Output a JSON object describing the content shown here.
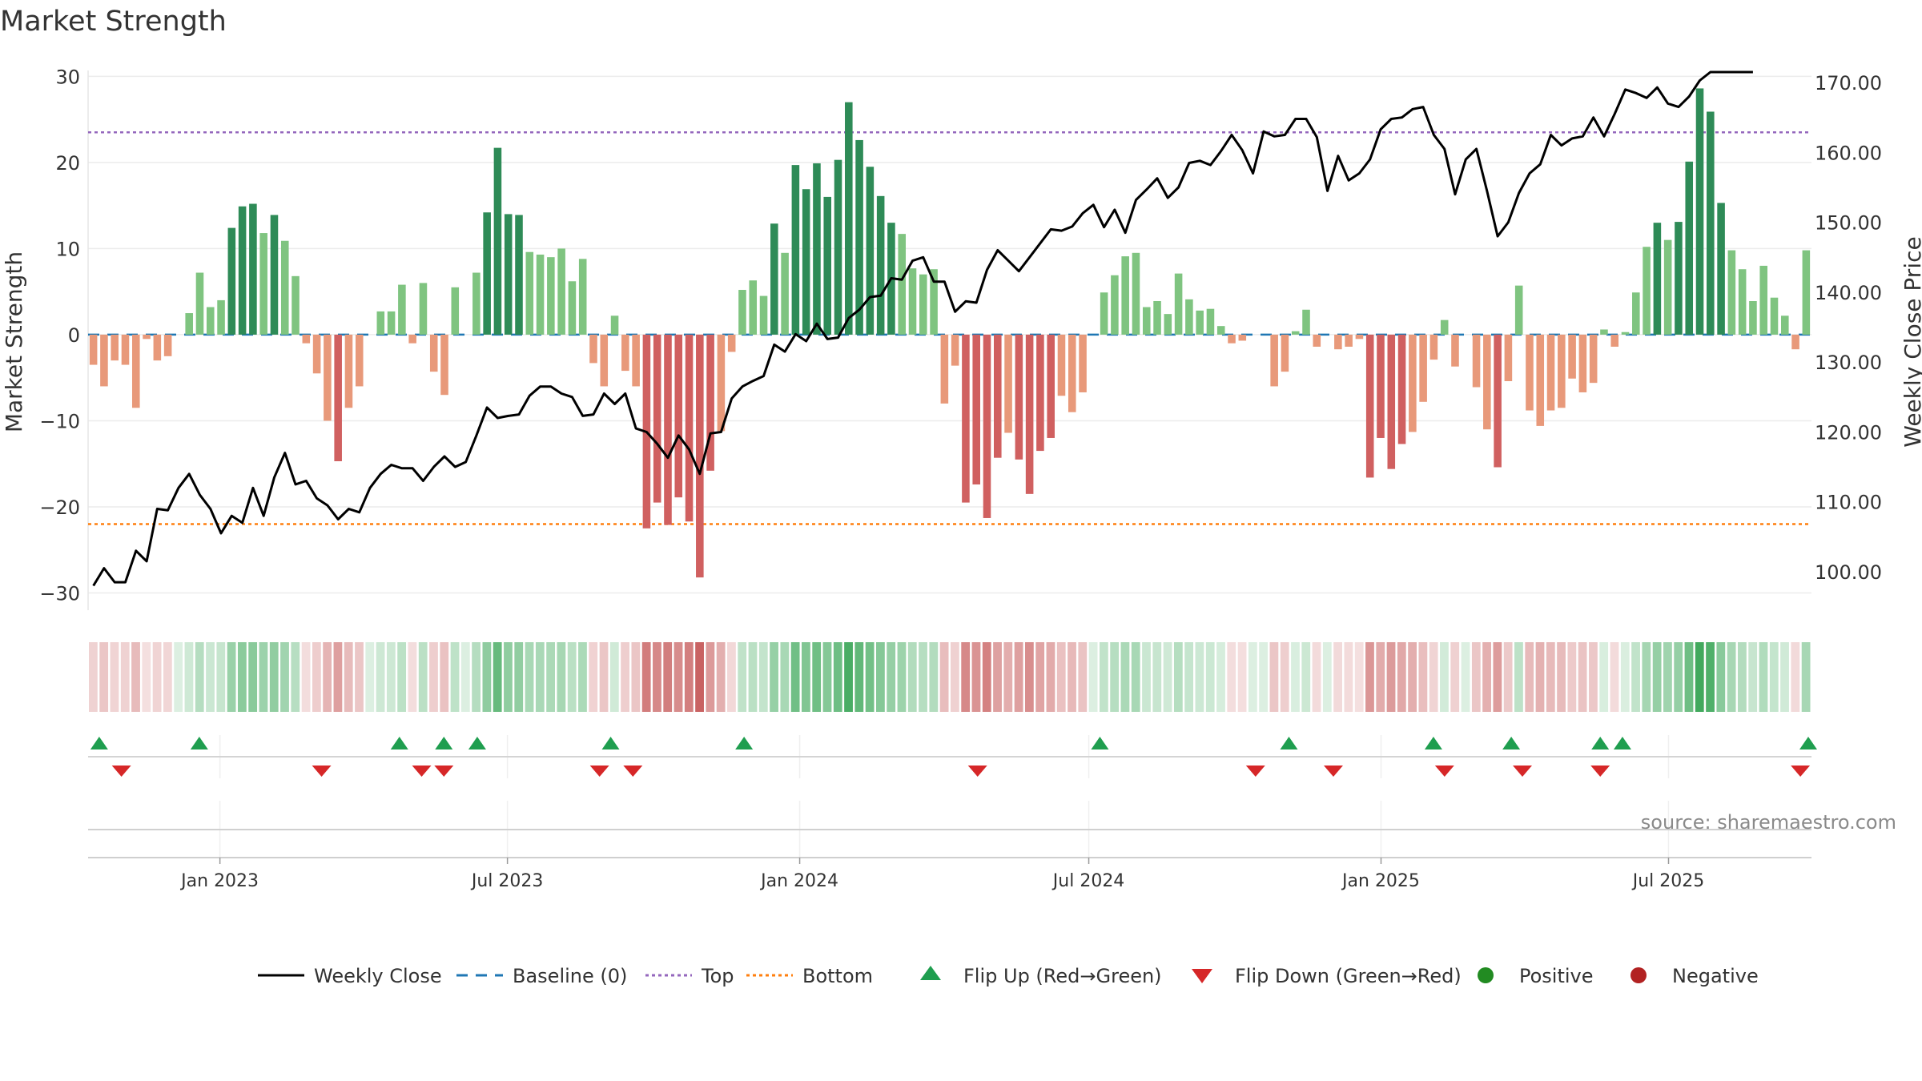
{
  "title": "Market Strength",
  "source_label": "source: sharemaestro.com",
  "chart_data": {
    "type": "bar",
    "title": "Market Strength",
    "ylabel_left": "Market Strength",
    "ylabel_right": "Weekly Close Price",
    "ylim_left": [
      -32,
      30.5
    ],
    "ylim_right": [
      94.5,
      171.5
    ],
    "yticks_left": [
      30,
      20,
      10,
      0,
      -10,
      -20,
      -30
    ],
    "ytick_labels_left": [
      "30",
      "20",
      "10",
      "0",
      "−10",
      "−20",
      "−30"
    ],
    "yticks_right": [
      170,
      160,
      150,
      140,
      130,
      120,
      110,
      100
    ],
    "ytick_labels_right": [
      "170.00",
      "160.00",
      "150.00",
      "140.00",
      "130.00",
      "120.00",
      "110.00",
      "100.00"
    ],
    "x_start": "2022-10-10",
    "x_end": "2025-09-29",
    "x_ticks": [
      {
        "date": "2023-01-01",
        "label": "Jan 2023"
      },
      {
        "date": "2023-07-01",
        "label": "Jul 2023"
      },
      {
        "date": "2024-01-01",
        "label": "Jan 2024"
      },
      {
        "date": "2024-07-01",
        "label": "Jul 2024"
      },
      {
        "date": "2025-01-01",
        "label": "Jan 2025"
      },
      {
        "date": "2025-07-01",
        "label": "Jul 2025"
      }
    ],
    "top_level": 23.5,
    "bottom_level": -22,
    "market_strength": [
      -3.5,
      -6,
      -3,
      -3.5,
      -8.5,
      -0.5,
      -3,
      -2.5,
      0,
      2.5,
      7.2,
      3.2,
      4,
      12.4,
      14.9,
      15.2,
      11.8,
      13.9,
      10.9,
      6.8,
      -1,
      -4.5,
      -10,
      -14.7,
      -8.5,
      -6,
      0,
      2.7,
      2.7,
      5.8,
      -1,
      6,
      -4.3,
      -7,
      5.5,
      0,
      7.2,
      14.2,
      21.7,
      14,
      13.9,
      9.6,
      9.3,
      9,
      10,
      6.2,
      8.8,
      -3.3,
      -6,
      2.2,
      -4.2,
      -6,
      -22.5,
      -19.5,
      -22.1,
      -18.9,
      -21.7,
      -28.2,
      -15.8,
      -11.2,
      -2,
      5.2,
      6.3,
      4.5,
      12.9,
      9.5,
      19.7,
      16.9,
      19.9,
      16,
      20.3,
      27,
      22.6,
      19.5,
      16.1,
      13,
      11.7,
      7.7,
      7,
      7.6,
      -8,
      -3.6,
      -19.5,
      -17.4,
      -21.3,
      -14.3,
      -11.4,
      -14.5,
      -18.5,
      -13.5,
      -12,
      -7.1,
      -9,
      -6.7,
      0,
      4.9,
      6.9,
      9.1,
      9.5,
      3.2,
      3.9,
      2.4,
      7.1,
      4.1,
      2.8,
      3,
      1,
      -1,
      -0.7,
      0,
      0,
      -6,
      -4.3,
      0.4,
      2.9,
      -1.4,
      0,
      -1.7,
      -1.4,
      -0.5,
      -16.6,
      -12,
      -15.6,
      -12.7,
      -11.3,
      -7.8,
      -2.9,
      1.7,
      -3.7,
      0,
      -6.1,
      -11,
      -15.4,
      -5.4,
      5.7,
      -8.8,
      -10.6,
      -8.8,
      -8.5,
      -5.1,
      -6.7,
      -5.6,
      0.6,
      -1.4,
      0.3,
      4.9,
      10.2,
      13,
      11,
      13.1,
      20.1,
      28.6,
      25.9,
      15.3,
      9.8,
      7.6,
      3.9,
      8,
      4.3,
      2.2,
      -1.7,
      9.8
    ],
    "weekly_close": [
      98,
      100.5,
      98.5,
      98.5,
      103,
      101.5,
      109,
      108.8,
      112,
      114,
      111,
      109,
      105.5,
      108,
      107,
      112,
      108,
      113.5,
      117,
      112.5,
      113,
      110.5,
      109.5,
      107.5,
      109,
      108.5,
      112,
      114,
      115.3,
      114.8,
      114.8,
      113,
      115,
      116.5,
      115,
      115.7,
      119.5,
      123.5,
      122,
      122.3,
      122.5,
      125.2,
      126.5,
      126.5,
      125.5,
      125,
      122.3,
      122.5,
      125.5,
      124,
      125.5,
      120.5,
      120,
      118.3,
      116.3,
      119.5,
      117.5,
      114,
      119.8,
      120,
      124.8,
      126.5,
      127.3,
      128,
      132.5,
      131.5,
      134,
      133,
      135.5,
      133.3,
      133.5,
      136.3,
      137.5,
      139.3,
      139.5,
      142,
      141.8,
      144.5,
      145,
      141.5,
      141.5,
      137.2,
      138.7,
      138.5,
      143.2,
      146,
      144.5,
      143,
      145,
      147,
      149,
      148.8,
      149.4,
      151.3,
      152.5,
      149.3,
      151.8,
      148.5,
      153.2,
      154.7,
      156.3,
      153.5,
      155,
      158.5,
      158.8,
      158.2,
      160.2,
      162.5,
      160.3,
      157,
      163,
      162.3,
      162.5,
      164.8,
      164.8,
      162.2,
      154.5,
      159.5,
      156,
      157,
      159,
      163.3,
      164.8,
      165,
      166.2,
      166.5,
      162.5,
      160.5,
      154,
      159,
      160.5,
      154.5,
      148,
      150,
      154.2,
      157,
      158.3,
      162.5,
      161,
      162,
      162.3,
      165,
      162.3,
      165.5,
      169,
      168.5,
      167.8,
      169.3,
      167,
      166.5,
      168,
      170.3,
      172.5,
      172.3,
      172.5,
      174,
      175.6
    ],
    "strength_colors": {
      "strong_positive": "#2e8b57",
      "weak_positive": "#7fc480",
      "strong_negative": "#d06060",
      "weak_negative": "#e8997a"
    },
    "flip_up_dates": [
      "2022-10-17",
      "2022-12-19",
      "2023-04-24",
      "2023-05-22",
      "2023-06-12",
      "2023-09-04",
      "2023-11-27",
      "2024-07-08",
      "2024-11-04",
      "2025-02-03",
      "2025-03-24",
      "2025-05-19",
      "2025-06-02",
      "2025-09-29"
    ],
    "flip_down_dates": [
      "2022-10-31",
      "2023-03-06",
      "2023-05-08",
      "2023-05-22",
      "2023-08-28",
      "2023-09-18",
      "2024-04-22",
      "2024-10-14",
      "2024-12-02",
      "2025-02-10",
      "2025-03-31",
      "2025-05-19",
      "2025-09-22"
    ],
    "colors": {
      "weekly_close": "#000000",
      "baseline": "#1f77b4",
      "top": "#9467bd",
      "bottom": "#ff7f0e",
      "flip_up": "#1f9e4f",
      "flip_down": "#d62728",
      "positive": "#228b22",
      "negative": "#b22222"
    },
    "legend": {
      "position": "bottom-center",
      "items": [
        {
          "label": "Weekly Close",
          "marker": "line"
        },
        {
          "label": "Baseline (0)",
          "marker": "dash"
        },
        {
          "label": "Top",
          "marker": "dot-line"
        },
        {
          "label": "Bottom",
          "marker": "dot-line"
        },
        {
          "label": "Flip Up (Red→Green)",
          "marker": "triangle-up"
        },
        {
          "label": "Flip Down (Green→Red)",
          "marker": "triangle-down"
        },
        {
          "label": "Positive",
          "marker": "circle"
        },
        {
          "label": "Negative",
          "marker": "circle"
        }
      ]
    },
    "grid": true
  }
}
